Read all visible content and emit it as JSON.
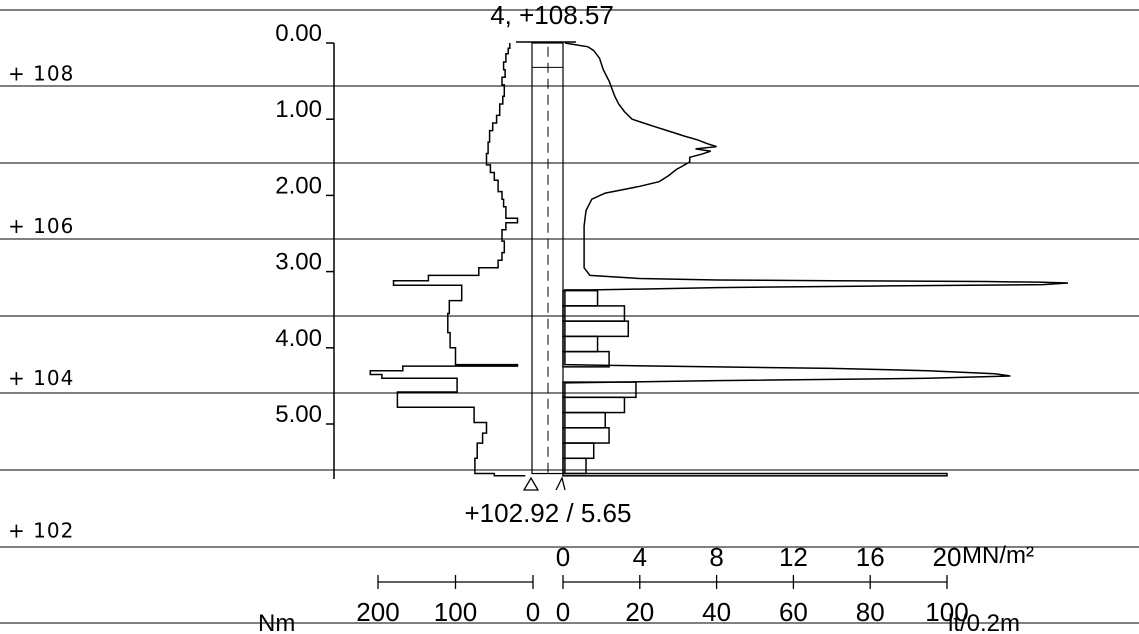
{
  "header": {
    "top_label": "4, +108.57"
  },
  "footer": {
    "bottom_label": "+102.92 / 5.65"
  },
  "chart_data": {
    "type": "area",
    "description_of_axes": "vertical depth axis (m) with elevation levels; left side torque profile (Nm), right side resistance profile (MN/m²) and water flow (lt/0.2m)",
    "depth_ticks": [
      "0.00",
      "1.00",
      "2.00",
      "3.00",
      "4.00",
      "5.00"
    ],
    "depth_range": [
      0,
      5.65
    ],
    "elevation_labels": [
      {
        "label": "+ 108",
        "elevation": 108
      },
      {
        "label": "+ 106",
        "elevation": 106
      },
      {
        "label": "+ 104",
        "elevation": 104
      },
      {
        "label": "+ 102",
        "elevation": 102
      }
    ],
    "top_elevation": 108.57,
    "bottom_elevation": 102.92,
    "final_depth": 5.65,
    "resistance_axis": {
      "unit": "MN/m²",
      "tick_labels": [
        "0",
        "4",
        "8",
        "12",
        "16",
        "20"
      ],
      "range": [
        0,
        20
      ]
    },
    "flow_axis": {
      "unit": "lt/0.2m",
      "tick_labels": [
        "0",
        "20",
        "40",
        "60",
        "80",
        "100"
      ],
      "range": [
        0,
        100
      ]
    },
    "torque_axis": {
      "unit": "Nm",
      "tick_labels": [
        "200",
        "100",
        "0"
      ],
      "range": [
        0,
        200
      ]
    },
    "resistance_profile": [
      [
        0.0,
        0.1
      ],
      [
        0.05,
        1.3
      ],
      [
        0.1,
        1.6
      ],
      [
        0.2,
        1.9
      ],
      [
        0.35,
        2.1
      ],
      [
        0.5,
        2.4
      ],
      [
        0.7,
        2.7
      ],
      [
        0.8,
        2.9
      ],
      [
        0.9,
        3.2
      ],
      [
        1.0,
        3.6
      ],
      [
        1.05,
        4.2
      ],
      [
        1.1,
        4.8
      ],
      [
        1.18,
        5.8
      ],
      [
        1.22,
        6.3
      ],
      [
        1.27,
        7.0
      ],
      [
        1.32,
        7.5
      ],
      [
        1.36,
        8.0
      ],
      [
        1.39,
        6.9
      ],
      [
        1.42,
        7.7
      ],
      [
        1.46,
        7.2
      ],
      [
        1.5,
        6.6
      ],
      [
        1.56,
        6.6
      ],
      [
        1.62,
        6.2
      ],
      [
        1.66,
        5.9
      ],
      [
        1.74,
        5.5
      ],
      [
        1.82,
        5.0
      ],
      [
        1.88,
        4.0
      ],
      [
        1.93,
        3.0
      ],
      [
        1.97,
        2.2
      ],
      [
        2.05,
        1.5
      ],
      [
        2.2,
        1.2
      ],
      [
        2.4,
        1.1
      ],
      [
        2.7,
        1.1
      ],
      [
        2.95,
        1.1
      ],
      [
        3.05,
        1.4
      ],
      [
        3.09,
        4.0
      ],
      [
        3.11,
        8.0
      ],
      [
        3.12,
        14.0
      ],
      [
        3.13,
        22.0
      ],
      [
        3.14,
        25.0
      ],
      [
        3.15,
        26.3
      ],
      [
        3.17,
        25.0
      ],
      [
        3.19,
        16.0
      ],
      [
        3.21,
        8.0
      ],
      [
        3.23,
        4.0
      ],
      [
        3.24,
        1.5
      ],
      [
        3.24,
        0.1
      ],
      [
        4.22,
        0.1
      ],
      [
        4.23,
        2.0
      ],
      [
        4.25,
        8.0
      ],
      [
        4.27,
        14.0
      ],
      [
        4.3,
        19.0
      ],
      [
        4.34,
        22.5
      ],
      [
        4.37,
        23.3
      ],
      [
        4.4,
        19.0
      ],
      [
        4.43,
        8.0
      ],
      [
        4.46,
        0.1
      ],
      [
        5.65,
        0.1
      ]
    ],
    "flow_bars": [
      {
        "depth_from": 3.25,
        "depth_to": 3.45,
        "flow": 9
      },
      {
        "depth_from": 3.45,
        "depth_to": 3.65,
        "flow": 16
      },
      {
        "depth_from": 3.65,
        "depth_to": 3.85,
        "flow": 17
      },
      {
        "depth_from": 3.85,
        "depth_to": 4.05,
        "flow": 9
      },
      {
        "depth_from": 4.05,
        "depth_to": 4.25,
        "flow": 12
      },
      {
        "depth_from": 4.45,
        "depth_to": 4.65,
        "flow": 19
      },
      {
        "depth_from": 4.65,
        "depth_to": 4.85,
        "flow": 16
      },
      {
        "depth_from": 4.85,
        "depth_to": 5.05,
        "flow": 11
      },
      {
        "depth_from": 5.05,
        "depth_to": 5.25,
        "flow": 12
      },
      {
        "depth_from": 5.25,
        "depth_to": 5.45,
        "flow": 8
      },
      {
        "depth_from": 5.45,
        "depth_to": 5.65,
        "flow": 6
      },
      {
        "depth_from": 5.65,
        "depth_to": 5.68,
        "flow": 100
      }
    ],
    "torque_profile": [
      [
        0.0,
        30
      ],
      [
        0.07,
        30
      ],
      [
        0.07,
        32
      ],
      [
        0.14,
        32
      ],
      [
        0.14,
        35
      ],
      [
        0.25,
        35
      ],
      [
        0.25,
        38
      ],
      [
        0.35,
        38
      ],
      [
        0.35,
        36
      ],
      [
        0.45,
        36
      ],
      [
        0.45,
        40
      ],
      [
        0.55,
        40
      ],
      [
        0.55,
        37
      ],
      [
        0.7,
        37
      ],
      [
        0.7,
        39
      ],
      [
        0.8,
        39
      ],
      [
        0.8,
        43
      ],
      [
        0.95,
        43
      ],
      [
        0.95,
        47
      ],
      [
        1.05,
        47
      ],
      [
        1.05,
        52
      ],
      [
        1.15,
        52
      ],
      [
        1.15,
        56
      ],
      [
        1.3,
        56
      ],
      [
        1.3,
        58
      ],
      [
        1.45,
        58
      ],
      [
        1.45,
        60
      ],
      [
        1.6,
        60
      ],
      [
        1.6,
        55
      ],
      [
        1.7,
        55
      ],
      [
        1.7,
        50
      ],
      [
        1.8,
        50
      ],
      [
        1.8,
        45
      ],
      [
        1.95,
        45
      ],
      [
        1.95,
        40
      ],
      [
        2.05,
        40
      ],
      [
        2.05,
        38
      ],
      [
        2.15,
        38
      ],
      [
        2.15,
        35
      ],
      [
        2.3,
        35
      ],
      [
        2.3,
        20
      ],
      [
        2.36,
        20
      ],
      [
        2.36,
        35
      ],
      [
        2.45,
        35
      ],
      [
        2.45,
        40
      ],
      [
        2.6,
        40
      ],
      [
        2.6,
        37
      ],
      [
        2.75,
        37
      ],
      [
        2.75,
        40
      ],
      [
        2.85,
        40
      ],
      [
        2.85,
        45
      ],
      [
        2.95,
        45
      ],
      [
        2.95,
        70
      ],
      [
        3.05,
        70
      ],
      [
        3.05,
        135
      ],
      [
        3.12,
        135
      ],
      [
        3.12,
        180
      ],
      [
        3.18,
        180
      ],
      [
        3.18,
        92
      ],
      [
        3.38,
        92
      ],
      [
        3.38,
        108
      ],
      [
        3.55,
        108
      ],
      [
        3.55,
        110
      ],
      [
        3.8,
        110
      ],
      [
        3.8,
        107
      ],
      [
        4.0,
        107
      ],
      [
        4.0,
        100
      ],
      [
        4.22,
        100
      ],
      [
        4.22,
        20
      ],
      [
        4.24,
        20
      ],
      [
        4.24,
        168
      ],
      [
        4.3,
        168
      ],
      [
        4.3,
        210
      ],
      [
        4.35,
        210
      ],
      [
        4.35,
        195
      ],
      [
        4.4,
        195
      ],
      [
        4.4,
        98
      ],
      [
        4.58,
        98
      ],
      [
        4.58,
        175
      ],
      [
        4.78,
        175
      ],
      [
        4.78,
        76
      ],
      [
        4.98,
        76
      ],
      [
        4.98,
        60
      ],
      [
        5.12,
        60
      ],
      [
        5.12,
        65
      ],
      [
        5.25,
        65
      ],
      [
        5.25,
        72
      ],
      [
        5.45,
        72
      ],
      [
        5.45,
        75
      ],
      [
        5.65,
        75
      ],
      [
        5.65,
        50
      ],
      [
        5.68,
        50
      ],
      [
        5.68,
        10
      ]
    ],
    "grid": true
  }
}
